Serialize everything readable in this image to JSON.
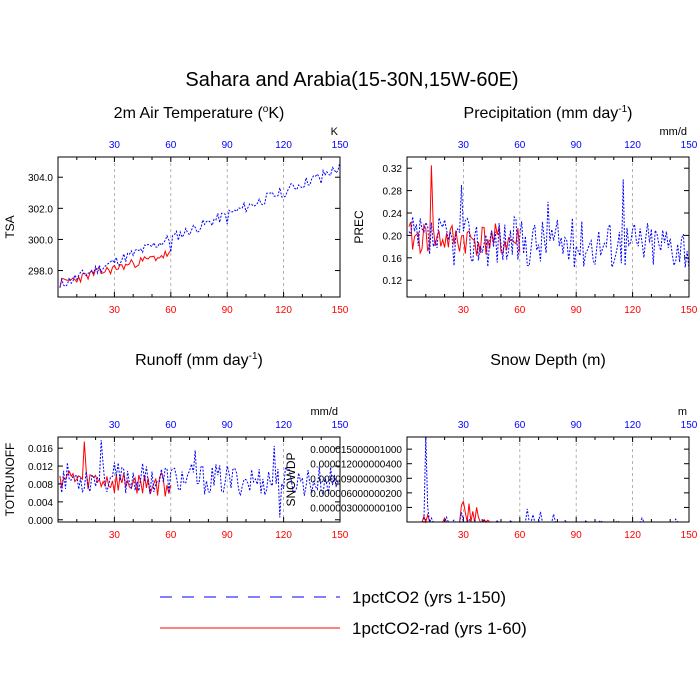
{
  "figure": {
    "title": "Sahara and Arabia(15-30N,15W-60E)"
  },
  "legend": {
    "position": "bottom",
    "entries": [
      {
        "label": "1pctCO2 (yrs 1-150)",
        "color": "#0000ff",
        "style": "dashed"
      },
      {
        "label": "1pctCO2-rad (yrs 1-60)",
        "color": "#ff0000",
        "style": "solid"
      }
    ]
  },
  "colors": {
    "series_1pctCO2": "#0000ff",
    "series_1pctCO2_rad": "#ff0000",
    "grid": "#a0a0a0",
    "top_tick_labels": "#0000ff",
    "bottom_tick_labels": "#ff0000"
  },
  "chart_data": [
    {
      "type": "line",
      "title": "2m Air Temperature (°K)",
      "title_main": "2m Air Temperature (",
      "title_sup": "o",
      "title_end": "K)",
      "ylabel": "TSA",
      "units": "K",
      "xlim": [
        0,
        150
      ],
      "ylim": [
        296.3,
        305.3
      ],
      "xticks": [
        30,
        60,
        90,
        120,
        150
      ],
      "yticks": [
        298.0,
        300.0,
        302.0,
        304.0
      ],
      "ytick_labels": [
        "298.0",
        "300.0",
        "302.0",
        "304.0"
      ],
      "grid_x": [
        30,
        60,
        90,
        120
      ],
      "series": [
        {
          "name": "1pctCO2 (yrs 1-150)",
          "base_start": 297.1,
          "base_end": 304.6,
          "amp": 0.35,
          "n": 150,
          "seed": 11,
          "anchors": [
            [
              1,
              296.9
            ],
            [
              60,
              299.2
            ],
            [
              70,
              300.3
            ],
            [
              90,
              301.0
            ],
            [
              120,
              302.7
            ],
            [
              140,
              303.6
            ],
            [
              150,
              305.0
            ]
          ]
        },
        {
          "name": "1pctCO2-rad (yrs 1-60)",
          "base_start": 297.2,
          "base_end": 299.1,
          "amp": 0.3,
          "n": 60,
          "seed": 23,
          "anchors": [
            [
              1,
              296.9
            ],
            [
              20,
              298.1
            ],
            [
              40,
              298.5
            ],
            [
              60,
              299.3
            ]
          ]
        }
      ]
    },
    {
      "type": "line",
      "title": "Precipitation (mm day⁻¹)",
      "title_main": "Precipitation (mm day",
      "title_sup": "-1",
      "title_end": ")",
      "ylabel": "PREC",
      "units": "mm/d",
      "xlim": [
        0,
        150
      ],
      "ylim": [
        0.09,
        0.34
      ],
      "xticks": [
        30,
        60,
        90,
        120,
        150
      ],
      "yticks": [
        0.12,
        0.16,
        0.2,
        0.24,
        0.28,
        0.32
      ],
      "ytick_labels": [
        "0.12",
        "0.16",
        "0.20",
        "0.24",
        "0.28",
        "0.32"
      ],
      "grid_x": [
        30,
        60,
        90,
        120
      ],
      "series": [
        {
          "name": "1pctCO2 (yrs 1-150)",
          "base_start": 0.19,
          "base_end": 0.185,
          "amp": 0.045,
          "n": 150,
          "seed": 37,
          "anchors": [
            [
              29,
              0.29
            ],
            [
              75,
              0.26
            ],
            [
              115,
              0.3
            ],
            [
              150,
              0.14
            ]
          ]
        },
        {
          "name": "1pctCO2-rad (yrs 1-60)",
          "base_start": 0.195,
          "base_end": 0.19,
          "amp": 0.03,
          "n": 60,
          "seed": 41,
          "anchors": [
            [
              13,
              0.325
            ],
            [
              30,
              0.2
            ],
            [
              50,
              0.17
            ]
          ]
        }
      ]
    },
    {
      "type": "line",
      "title": "Runoff (mm day⁻¹)",
      "title_main": "Runoff (mm day",
      "title_sup": "-1",
      "title_end": ")",
      "ylabel": "TOTRUNOFF",
      "units": "mm/d",
      "xlim": [
        0,
        150
      ],
      "ylim": [
        -0.0005,
        0.0185
      ],
      "xticks": [
        30,
        60,
        90,
        120,
        150
      ],
      "yticks": [
        0.0,
        0.004,
        0.008,
        0.012,
        0.016
      ],
      "ytick_labels": [
        "0.000",
        "0.004",
        "0.008",
        "0.012",
        "0.016"
      ],
      "grid_x": [
        30,
        60,
        90,
        120
      ],
      "series": [
        {
          "name": "1pctCO2 (yrs 1-150)",
          "base_start": 0.0095,
          "base_end": 0.0085,
          "amp": 0.0035,
          "n": 150,
          "seed": 53,
          "anchors": [
            [
              23,
              0.0178
            ],
            [
              73,
              0.0155
            ],
            [
              115,
              0.0165
            ],
            [
              118,
              0.0005
            ],
            [
              150,
              0.0088
            ]
          ]
        },
        {
          "name": "1pctCO2-rad (yrs 1-60)",
          "base_start": 0.0095,
          "base_end": 0.0075,
          "amp": 0.0025,
          "n": 60,
          "seed": 59,
          "anchors": [
            [
              14,
              0.0175
            ],
            [
              30,
              0.006
            ],
            [
              55,
              0.0105
            ]
          ]
        }
      ]
    },
    {
      "type": "line",
      "title": "Snow Depth (m)",
      "title_main": "Snow Depth (m)",
      "title_sup": "",
      "title_end": "",
      "ylabel": "SNOWDP",
      "units": "m",
      "xlim": [
        0,
        150
      ],
      "ylim": [
        0,
        1.75e-05
      ],
      "xticks": [
        30,
        60,
        90,
        120,
        150
      ],
      "yticks": [
        3e-06,
        6e-06,
        9e-06,
        1.2e-05,
        1.5e-05
      ],
      "ytick_labels": [
        "0.000003000000100",
        "0.000006000000200",
        "0.000009000000300",
        "0.000012000000400",
        "0.000015000001000"
      ],
      "grid_x": [
        30,
        60,
        90,
        120
      ],
      "series": [
        {
          "name": "1pctCO2 (yrs 1-150)",
          "spikes": [
            [
              10,
              1.75e-05
            ],
            [
              11,
              3e-06
            ],
            [
              13,
              8e-07
            ],
            [
              21,
              1e-06
            ],
            [
              25,
              4e-07
            ],
            [
              29,
              2e-06
            ],
            [
              33,
              6e-07
            ],
            [
              36,
              4e-07
            ],
            [
              41,
              3e-07
            ],
            [
              48,
              2e-07
            ],
            [
              55,
              2e-07
            ],
            [
              64,
              2.7e-06
            ],
            [
              67,
              1.5e-06
            ],
            [
              71,
              2.1e-06
            ],
            [
              78,
              1.6e-06
            ],
            [
              84,
              3e-07
            ],
            [
              95,
              2e-07
            ],
            [
              103,
              3e-07
            ],
            [
              112,
              2e-07
            ],
            [
              125,
              8e-07
            ],
            [
              143,
              6e-07
            ]
          ]
        },
        {
          "name": "1pctCO2-rad (yrs 1-60)",
          "spikes": [
            [
              9,
              1.2e-06
            ],
            [
              11,
              1.5e-06
            ],
            [
              20,
              8e-07
            ],
            [
              29,
              3.5e-06
            ],
            [
              30,
              4.2e-06
            ],
            [
              31,
              2e-06
            ],
            [
              33,
              3.8e-06
            ],
            [
              35,
              2.2e-06
            ],
            [
              37,
              3e-06
            ],
            [
              38,
              1e-06
            ],
            [
              41,
              5e-07
            ],
            [
              43,
              4e-07
            ]
          ]
        }
      ]
    }
  ]
}
